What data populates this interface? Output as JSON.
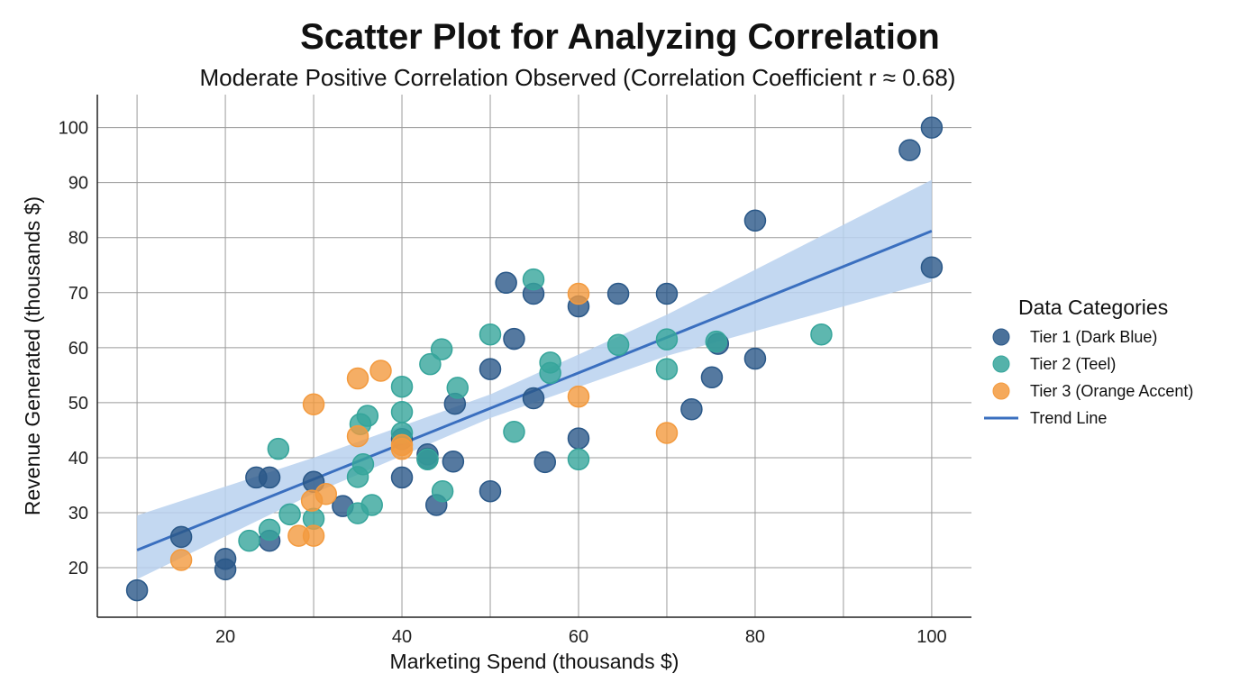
{
  "chart_data": {
    "type": "scatter",
    "title": "Scatter Plot for Analyzing Correlation",
    "subtitle": "Moderate Positive Correlation Observed (Correlation Coefficient r ≈ 0.68)",
    "xlabel": "Marketing Spend (thousands $)",
    "ylabel": "Revenue Generated (thousands $)",
    "xlim": [
      5.5,
      104.5
    ],
    "ylim": [
      11,
      106
    ],
    "xticks": [
      20,
      40,
      60,
      80,
      100
    ],
    "yticks": [
      20,
      30,
      40,
      50,
      60,
      70,
      80,
      90,
      100
    ],
    "grid": true,
    "legend": {
      "title": "Data Categories",
      "placement": "right"
    },
    "series": [
      {
        "name": "Tier 1 (Dark Blue)",
        "color": "#2a5888",
        "points": [
          [
            10,
            15.9
          ],
          [
            15,
            25.6
          ],
          [
            20,
            21.6
          ],
          [
            20,
            19.7
          ],
          [
            23.5,
            36.4
          ],
          [
            25,
            36.4
          ],
          [
            25,
            24.9
          ],
          [
            30,
            35.6
          ],
          [
            33.3,
            31.2
          ],
          [
            40,
            36.4
          ],
          [
            40,
            43.4
          ],
          [
            42.9,
            40.6
          ],
          [
            42.9,
            39.8
          ],
          [
            43.9,
            31.4
          ],
          [
            45.8,
            39.3
          ],
          [
            46,
            49.8
          ],
          [
            50,
            56.1
          ],
          [
            50,
            33.9
          ],
          [
            51.8,
            71.8
          ],
          [
            52.7,
            61.6
          ],
          [
            54.9,
            69.8
          ],
          [
            54.9,
            50.8
          ],
          [
            56.2,
            39.2
          ],
          [
            60,
            67.5
          ],
          [
            60,
            43.5
          ],
          [
            64.5,
            69.8
          ],
          [
            70,
            69.8
          ],
          [
            72.8,
            48.8
          ],
          [
            75.1,
            54.6
          ],
          [
            75.8,
            60.7
          ],
          [
            80,
            58.0
          ],
          [
            80,
            83.1
          ],
          [
            97.5,
            95.9
          ],
          [
            100,
            100
          ],
          [
            100,
            74.6
          ]
        ]
      },
      {
        "name": "Tier 2 (Teel)",
        "color": "#36a59b",
        "points": [
          [
            22.7,
            24.9
          ],
          [
            25,
            26.9
          ],
          [
            26,
            41.6
          ],
          [
            27.3,
            29.7
          ],
          [
            30,
            28.9
          ],
          [
            35,
            29.9
          ],
          [
            36.6,
            31.4
          ],
          [
            35,
            36.5
          ],
          [
            35.6,
            38.8
          ],
          [
            35.3,
            46.1
          ],
          [
            36.1,
            47.6
          ],
          [
            40,
            52.9
          ],
          [
            40,
            48.3
          ],
          [
            40,
            44.5
          ],
          [
            43.2,
            57.0
          ],
          [
            44.5,
            59.7
          ],
          [
            42.9,
            39.7
          ],
          [
            44.6,
            33.9
          ],
          [
            46.3,
            52.7
          ],
          [
            50,
            62.4
          ],
          [
            52.7,
            44.7
          ],
          [
            54.9,
            72.4
          ],
          [
            56.8,
            57.3
          ],
          [
            56.8,
            55.4
          ],
          [
            60,
            39.7
          ],
          [
            64.5,
            60.5
          ],
          [
            70,
            61.5
          ],
          [
            70,
            56.1
          ],
          [
            75.6,
            61.1
          ],
          [
            87.5,
            62.4
          ]
        ]
      },
      {
        "name": "Tier 3 (Orange Accent)",
        "color": "#f39a3e",
        "points": [
          [
            15,
            21.4
          ],
          [
            28.3,
            25.8
          ],
          [
            30,
            25.8
          ],
          [
            30,
            49.7
          ],
          [
            29.8,
            32.2
          ],
          [
            31.4,
            33.4
          ],
          [
            35,
            54.4
          ],
          [
            35,
            43.9
          ],
          [
            37.6,
            55.8
          ],
          [
            40,
            41.6
          ],
          [
            40,
            42.3
          ],
          [
            60,
            69.8
          ],
          [
            60,
            51.1
          ],
          [
            70,
            44.5
          ]
        ]
      }
    ],
    "trend_line": {
      "name": "Trend Line",
      "color": "#3a6fbf",
      "x": [
        10,
        100
      ],
      "y": [
        23.2,
        81.2
      ]
    },
    "confidence_band": {
      "color": "#b9d1ee",
      "x": [
        10,
        30,
        50,
        70,
        100
      ],
      "lower": [
        17.9,
        33.5,
        47.2,
        58.5,
        72.0
      ],
      "upper": [
        29.5,
        40.0,
        51.5,
        66.0,
        90.5
      ]
    }
  }
}
